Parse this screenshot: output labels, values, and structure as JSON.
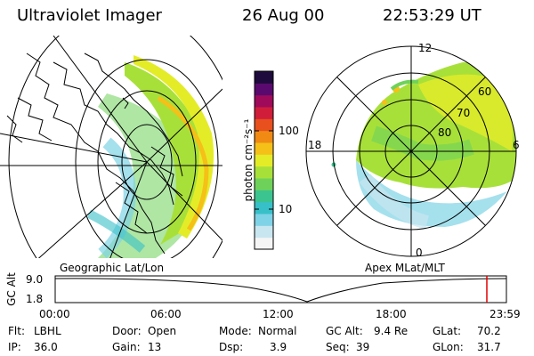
{
  "header": {
    "title": "Ultraviolet Imager",
    "date": "26 Aug 00",
    "time": "22:53:29 UT"
  },
  "left_panel": {
    "caption": "Geographic Lat/Lon"
  },
  "right_panel": {
    "caption": "Apex MLat/MLT",
    "mlt_labels": {
      "top": "12",
      "left": "18",
      "right": "6",
      "bottom": "0"
    },
    "lat_labels": [
      "60",
      "70",
      "80"
    ]
  },
  "colorbar": {
    "unit_label": "photon cm⁻²s⁻¹",
    "ticks": [
      "100",
      "10"
    ],
    "scale": "log",
    "colors": [
      "#f5f5f5",
      "#c8e6f0",
      "#7fd3e6",
      "#38c0c8",
      "#3cc490",
      "#6ed25a",
      "#a8e03a",
      "#e4ec28",
      "#f5c018",
      "#f08a14",
      "#e8501e",
      "#d01e3a",
      "#a00a5a",
      "#5a0a6e",
      "#1e0a3c"
    ]
  },
  "timeline": {
    "axis_label": "GC Alt",
    "y_ticks": [
      "9.0",
      "1.8"
    ],
    "x_ticks": [
      "00:00",
      "06:00",
      "12:00",
      "18:00",
      "23:59"
    ],
    "marker_color": "#e00000"
  },
  "status": {
    "flt_label": "Flt:",
    "flt_value": "LBHL",
    "ip_label": "IP:",
    "ip_value": "36.0",
    "door_label": "Door:",
    "door_value": "Open",
    "gain_label": "Gain:",
    "gain_value": "13",
    "mode_label": "Mode:",
    "mode_value": "Normal",
    "dsp_label": "Dsp:",
    "dsp_value": "3.9",
    "gcalt_label": "GC Alt:",
    "gcalt_value": "9.4 Re",
    "seq_label": "Seq:",
    "seq_value": "39",
    "glat_label": "GLat:",
    "glat_value": "70.2",
    "glon_label": "GLon:",
    "glon_value": "31.7"
  }
}
